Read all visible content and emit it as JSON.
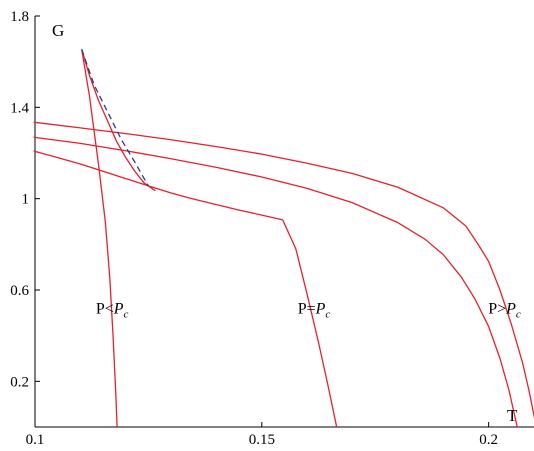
{
  "chart_data": {
    "type": "line",
    "title": "",
    "xlabel": "T",
    "ylabel": "G",
    "xlim": [
      0.1,
      0.21
    ],
    "ylim": [
      0.0,
      1.8
    ],
    "x_ticks": [
      0.1,
      0.15,
      0.2
    ],
    "x_tick_labels": [
      "0.1",
      "0.15",
      "0.2"
    ],
    "y_ticks": [
      0.2,
      0.6,
      1.0,
      1.4,
      1.8
    ],
    "y_tick_labels": [
      "0.2",
      "0.6",
      "1",
      "1.4",
      "1.8"
    ],
    "grid": false,
    "colors": {
      "red": "#e8202a",
      "blue": "#2a3a8c",
      "axis": "#000000"
    },
    "series": [
      {
        "color": "#e8202a",
        "style": "solid",
        "points": [
          [
            0.0997,
            1.209
          ],
          [
            0.105,
            1.18
          ],
          [
            0.11,
            1.152
          ],
          [
            0.115,
            1.12
          ],
          [
            0.12,
            1.088
          ],
          [
            0.125,
            1.056
          ],
          [
            0.13,
            1.025
          ],
          [
            0.135,
            0.998
          ],
          [
            0.14,
            0.974
          ],
          [
            0.145,
            0.95
          ],
          [
            0.15,
            0.928
          ],
          [
            0.1546,
            0.907
          ],
          [
            0.1575,
            0.78
          ],
          [
            0.16,
            0.58
          ],
          [
            0.1625,
            0.37
          ],
          [
            0.1645,
            0.19
          ],
          [
            0.1665,
            0.0
          ]
        ]
      },
      {
        "color": "#e8202a",
        "style": "solid",
        "points": [
          [
            0.0997,
            1.269
          ],
          [
            0.11,
            1.242
          ],
          [
            0.12,
            1.21
          ],
          [
            0.13,
            1.175
          ],
          [
            0.14,
            1.137
          ],
          [
            0.15,
            1.095
          ],
          [
            0.16,
            1.045
          ],
          [
            0.17,
            0.982
          ],
          [
            0.18,
            0.895
          ],
          [
            0.186,
            0.822
          ],
          [
            0.19,
            0.755
          ],
          [
            0.194,
            0.656
          ],
          [
            0.197,
            0.56
          ],
          [
            0.2,
            0.44
          ],
          [
            0.2025,
            0.3
          ],
          [
            0.2045,
            0.16
          ],
          [
            0.2063,
            0.0
          ]
        ]
      },
      {
        "color": "#e8202a",
        "style": "solid",
        "points": [
          [
            0.0997,
            1.335
          ],
          [
            0.11,
            1.31
          ],
          [
            0.12,
            1.285
          ],
          [
            0.13,
            1.258
          ],
          [
            0.14,
            1.228
          ],
          [
            0.15,
            1.195
          ],
          [
            0.16,
            1.155
          ],
          [
            0.17,
            1.11
          ],
          [
            0.18,
            1.05
          ],
          [
            0.19,
            0.96
          ],
          [
            0.195,
            0.88
          ],
          [
            0.198,
            0.79
          ],
          [
            0.2,
            0.725
          ],
          [
            0.2025,
            0.6
          ],
          [
            0.205,
            0.45
          ],
          [
            0.2075,
            0.28
          ],
          [
            0.209,
            0.15
          ],
          [
            0.2105,
            0.0
          ]
        ]
      },
      {
        "color": "#e8202a",
        "style": "solid",
        "points": [
          [
            0.1103,
            1.654
          ],
          [
            0.112,
            1.45
          ],
          [
            0.114,
            1.15
          ],
          [
            0.1155,
            0.9
          ],
          [
            0.1165,
            0.65
          ],
          [
            0.1172,
            0.4
          ],
          [
            0.1178,
            0.15
          ],
          [
            0.1181,
            0.0
          ]
        ]
      },
      {
        "color": "#e8202a",
        "style": "solid",
        "points": [
          [
            0.1103,
            1.654
          ],
          [
            0.112,
            1.54
          ],
          [
            0.114,
            1.43
          ],
          [
            0.116,
            1.34
          ],
          [
            0.118,
            1.25
          ],
          [
            0.12,
            1.18
          ],
          [
            0.122,
            1.12
          ],
          [
            0.124,
            1.07
          ],
          [
            0.1265,
            1.035
          ]
        ]
      },
      {
        "color": "#2a3a8c",
        "style": "dashed",
        "points": [
          [
            0.1103,
            1.654
          ],
          [
            0.113,
            1.5
          ],
          [
            0.116,
            1.38
          ],
          [
            0.119,
            1.26
          ],
          [
            0.122,
            1.16
          ],
          [
            0.125,
            1.055
          ]
        ]
      }
    ],
    "annotations": [
      {
        "text_main": "P",
        "op": "<",
        "text_sym": "P",
        "text_sub": "c",
        "x": 0.117,
        "y": 0.52
      },
      {
        "text_main": "P",
        "op": "=",
        "text_sym": "P",
        "text_sub": "c",
        "x": 0.1615,
        "y": 0.52
      },
      {
        "text_main": "P",
        "op": ">",
        "text_sym": "P",
        "text_sub": "c",
        "x": 0.2035,
        "y": 0.52
      }
    ]
  }
}
